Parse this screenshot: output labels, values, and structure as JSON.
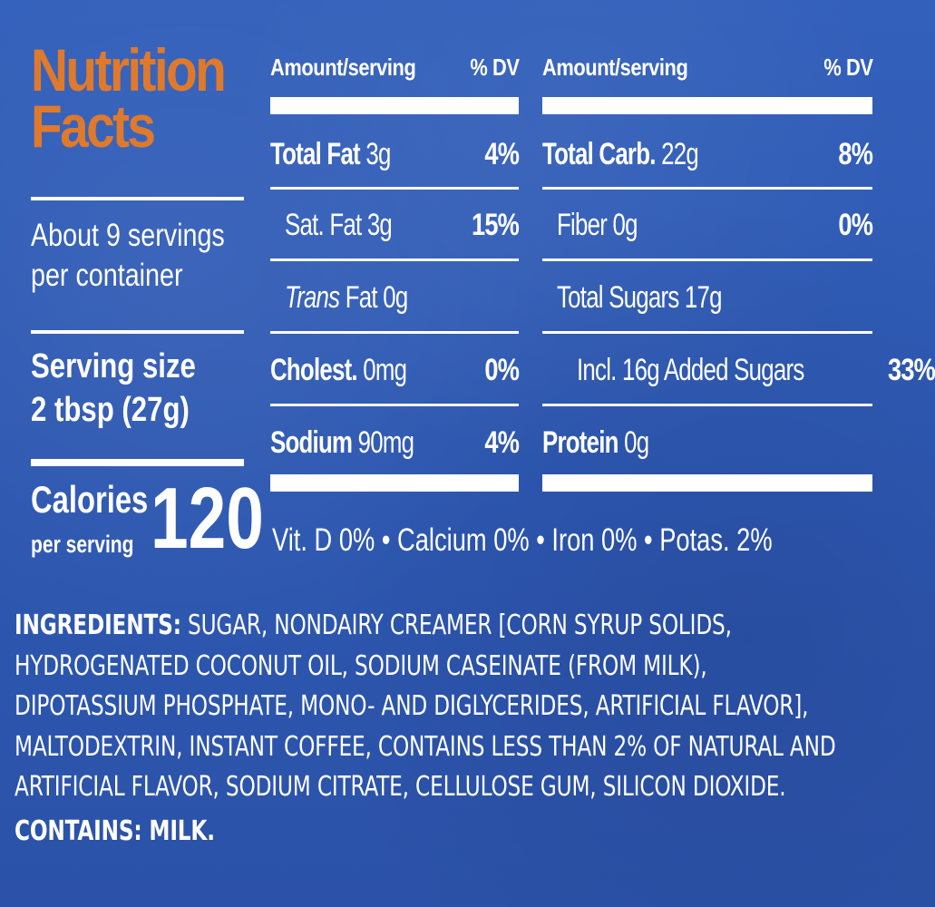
{
  "title": {
    "line1": "Nutrition",
    "line2": "Facts"
  },
  "servings": {
    "line1": "About 9 servings",
    "line2": "per container"
  },
  "serving_size": {
    "label": "Serving size",
    "value": "2 tbsp (27g)"
  },
  "calories": {
    "label": "Calories",
    "sublabel": "per serving",
    "value": "120"
  },
  "col_left": {
    "header_amount": "Amount/serving",
    "header_dv": "% DV",
    "rows": [
      {
        "name": "Total Fat",
        "amount": "3g",
        "dv": "4%"
      },
      {
        "name": "Sat. Fat 3g",
        "amount": "",
        "dv": "15%"
      },
      {
        "name_italic": "Trans",
        "name": " Fat 0g",
        "dv": ""
      },
      {
        "name": "Cholest.",
        "amount": "0mg",
        "dv": "0%"
      },
      {
        "name": "Sodium",
        "amount": "90mg",
        "dv": "4%"
      }
    ]
  },
  "col_right": {
    "header_amount": "Amount/serving",
    "header_dv": "% DV",
    "rows": [
      {
        "name": "Total Carb.",
        "amount": "22g",
        "dv": "8%"
      },
      {
        "name": "Fiber 0g",
        "dv": "0%"
      },
      {
        "name": "Total Sugars 17g",
        "dv": ""
      },
      {
        "name": "Incl. 16g Added Sugars",
        "dv": "33%"
      },
      {
        "name": "Protein",
        "amount": "0g",
        "dv": ""
      }
    ]
  },
  "vitamins": "Vit. D 0% • Calcium 0% • Iron 0% • Potas. 2%",
  "ingredients": {
    "label": "INGREDIENTS:",
    "line1": " SUGAR, NONDAIRY CREAMER [CORN SYRUP SOLIDS,",
    "line2": "HYDROGENATED COCONUT OIL, SODIUM CASEINATE (FROM MILK),",
    "line3": "DIPOTASSIUM PHOSPHATE, MONO- AND DIGLYCERIDES, ARTIFICIAL FLAVOR],",
    "line4": "MALTODEXTRIN, INSTANT COFFEE, CONTAINS LESS THAN 2% OF NATURAL AND",
    "line5": "ARTIFICIAL FLAVOR, SODIUM CITRATE, CELLULOSE GUM, SILICON DIOXIDE."
  },
  "contains": "CONTAINS: MILK.",
  "colors": {
    "background": "#2f5cb7",
    "title": "#df7a2c",
    "text": "#ffffff"
  }
}
